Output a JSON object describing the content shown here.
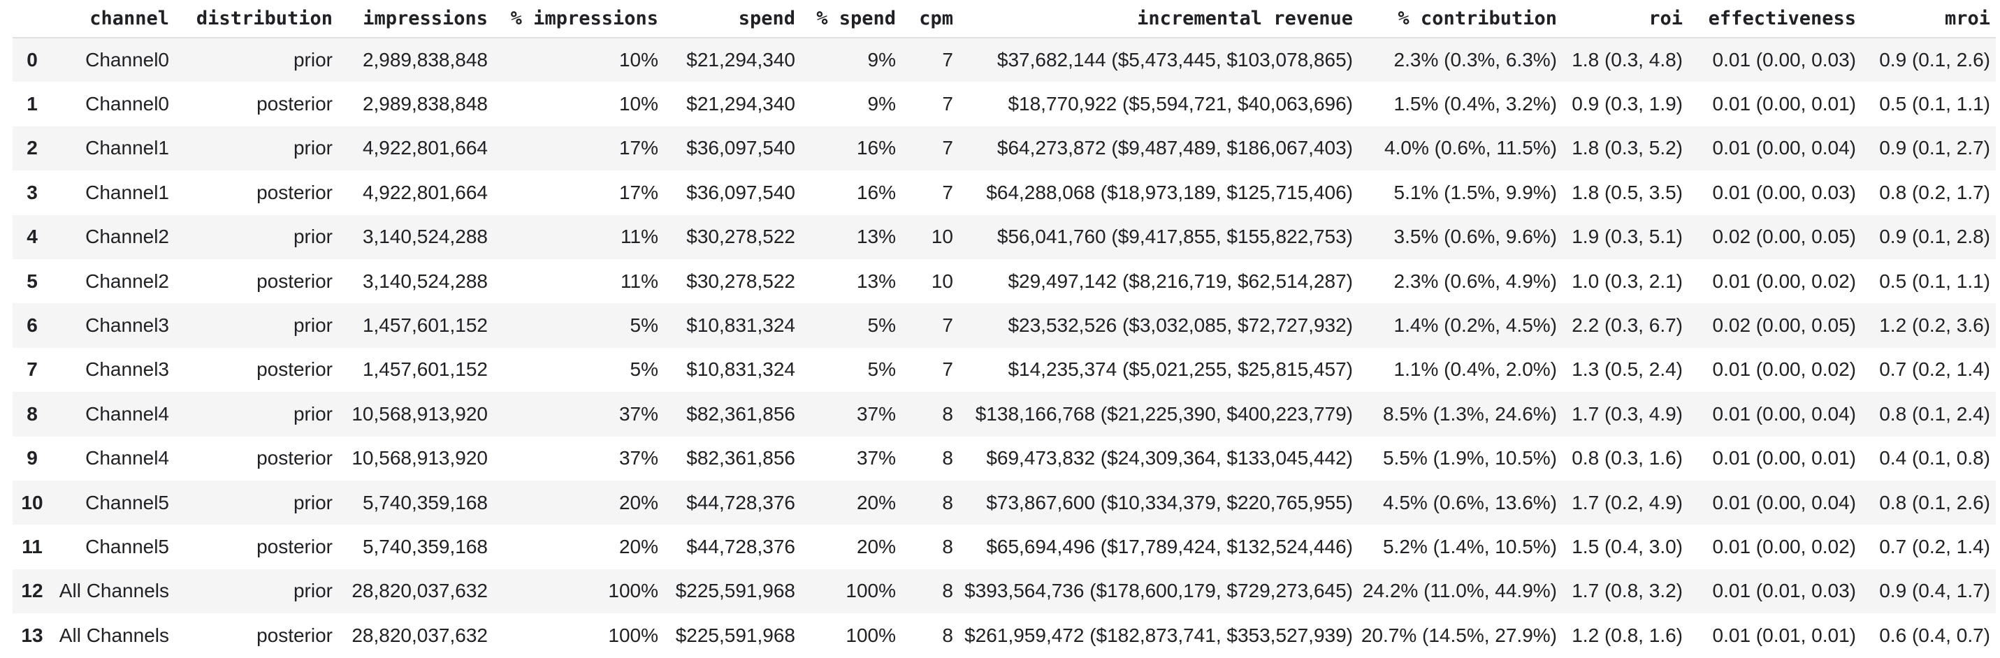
{
  "colors": {
    "row_stripe": "#f5f5f5",
    "text": "#202124",
    "header_border": "#e0e0e0",
    "background": "#ffffff"
  },
  "table": {
    "index_header": "",
    "columns": [
      "channel",
      "distribution",
      "impressions",
      "% impressions",
      "spend",
      "% spend",
      "cpm",
      "incremental revenue",
      "% contribution",
      "roi",
      "effectiveness",
      "mroi"
    ],
    "column_keys": [
      "channel",
      "distribution",
      "impressions",
      "pct-impressions",
      "spend",
      "pct-spend",
      "cpm",
      "incremental-revenue",
      "pct-contribution",
      "roi",
      "effectiveness",
      "mroi"
    ],
    "rows": [
      {
        "index": "0",
        "cells": [
          "Channel0",
          "prior",
          "2,989,838,848",
          "10%",
          "$21,294,340",
          "9%",
          "7",
          "$37,682,144 ($5,473,445, $103,078,865)",
          "2.3% (0.3%, 6.3%)",
          "1.8 (0.3, 4.8)",
          "0.01 (0.00, 0.03)",
          "0.9 (0.1, 2.6)"
        ]
      },
      {
        "index": "1",
        "cells": [
          "Channel0",
          "posterior",
          "2,989,838,848",
          "10%",
          "$21,294,340",
          "9%",
          "7",
          "$18,770,922 ($5,594,721, $40,063,696)",
          "1.5% (0.4%, 3.2%)",
          "0.9 (0.3, 1.9)",
          "0.01 (0.00, 0.01)",
          "0.5 (0.1, 1.1)"
        ]
      },
      {
        "index": "2",
        "cells": [
          "Channel1",
          "prior",
          "4,922,801,664",
          "17%",
          "$36,097,540",
          "16%",
          "7",
          "$64,273,872 ($9,487,489, $186,067,403)",
          "4.0% (0.6%, 11.5%)",
          "1.8 (0.3, 5.2)",
          "0.01 (0.00, 0.04)",
          "0.9 (0.1, 2.7)"
        ]
      },
      {
        "index": "3",
        "cells": [
          "Channel1",
          "posterior",
          "4,922,801,664",
          "17%",
          "$36,097,540",
          "16%",
          "7",
          "$64,288,068 ($18,973,189, $125,715,406)",
          "5.1% (1.5%, 9.9%)",
          "1.8 (0.5, 3.5)",
          "0.01 (0.00, 0.03)",
          "0.8 (0.2, 1.7)"
        ]
      },
      {
        "index": "4",
        "cells": [
          "Channel2",
          "prior",
          "3,140,524,288",
          "11%",
          "$30,278,522",
          "13%",
          "10",
          "$56,041,760 ($9,417,855, $155,822,753)",
          "3.5% (0.6%, 9.6%)",
          "1.9 (0.3, 5.1)",
          "0.02 (0.00, 0.05)",
          "0.9 (0.1, 2.8)"
        ]
      },
      {
        "index": "5",
        "cells": [
          "Channel2",
          "posterior",
          "3,140,524,288",
          "11%",
          "$30,278,522",
          "13%",
          "10",
          "$29,497,142 ($8,216,719, $62,514,287)",
          "2.3% (0.6%, 4.9%)",
          "1.0 (0.3, 2.1)",
          "0.01 (0.00, 0.02)",
          "0.5 (0.1, 1.1)"
        ]
      },
      {
        "index": "6",
        "cells": [
          "Channel3",
          "prior",
          "1,457,601,152",
          "5%",
          "$10,831,324",
          "5%",
          "7",
          "$23,532,526 ($3,032,085, $72,727,932)",
          "1.4% (0.2%, 4.5%)",
          "2.2 (0.3, 6.7)",
          "0.02 (0.00, 0.05)",
          "1.2 (0.2, 3.6)"
        ]
      },
      {
        "index": "7",
        "cells": [
          "Channel3",
          "posterior",
          "1,457,601,152",
          "5%",
          "$10,831,324",
          "5%",
          "7",
          "$14,235,374 ($5,021,255, $25,815,457)",
          "1.1% (0.4%, 2.0%)",
          "1.3 (0.5, 2.4)",
          "0.01 (0.00, 0.02)",
          "0.7 (0.2, 1.4)"
        ]
      },
      {
        "index": "8",
        "cells": [
          "Channel4",
          "prior",
          "10,568,913,920",
          "37%",
          "$82,361,856",
          "37%",
          "8",
          "$138,166,768 ($21,225,390, $400,223,779)",
          "8.5% (1.3%, 24.6%)",
          "1.7 (0.3, 4.9)",
          "0.01 (0.00, 0.04)",
          "0.8 (0.1, 2.4)"
        ]
      },
      {
        "index": "9",
        "cells": [
          "Channel4",
          "posterior",
          "10,568,913,920",
          "37%",
          "$82,361,856",
          "37%",
          "8",
          "$69,473,832 ($24,309,364, $133,045,442)",
          "5.5% (1.9%, 10.5%)",
          "0.8 (0.3, 1.6)",
          "0.01 (0.00, 0.01)",
          "0.4 (0.1, 0.8)"
        ]
      },
      {
        "index": "10",
        "cells": [
          "Channel5",
          "prior",
          "5,740,359,168",
          "20%",
          "$44,728,376",
          "20%",
          "8",
          "$73,867,600 ($10,334,379, $220,765,955)",
          "4.5% (0.6%, 13.6%)",
          "1.7 (0.2, 4.9)",
          "0.01 (0.00, 0.04)",
          "0.8 (0.1, 2.6)"
        ]
      },
      {
        "index": "11",
        "cells": [
          "Channel5",
          "posterior",
          "5,740,359,168",
          "20%",
          "$44,728,376",
          "20%",
          "8",
          "$65,694,496 ($17,789,424, $132,524,446)",
          "5.2% (1.4%, 10.5%)",
          "1.5 (0.4, 3.0)",
          "0.01 (0.00, 0.02)",
          "0.7 (0.2, 1.4)"
        ]
      },
      {
        "index": "12",
        "cells": [
          "All Channels",
          "prior",
          "28,820,037,632",
          "100%",
          "$225,591,968",
          "100%",
          "8",
          "$393,564,736 ($178,600,179, $729,273,645)",
          "24.2% (11.0%, 44.9%)",
          "1.7 (0.8, 3.2)",
          "0.01 (0.01, 0.03)",
          "0.9 (0.4, 1.7)"
        ]
      },
      {
        "index": "13",
        "cells": [
          "All Channels",
          "posterior",
          "28,820,037,632",
          "100%",
          "$225,591,968",
          "100%",
          "8",
          "$261,959,472 ($182,873,741, $353,527,939)",
          "20.7% (14.5%, 27.9%)",
          "1.2 (0.8, 1.6)",
          "0.01 (0.01, 0.01)",
          "0.6 (0.4, 0.7)"
        ]
      }
    ]
  }
}
